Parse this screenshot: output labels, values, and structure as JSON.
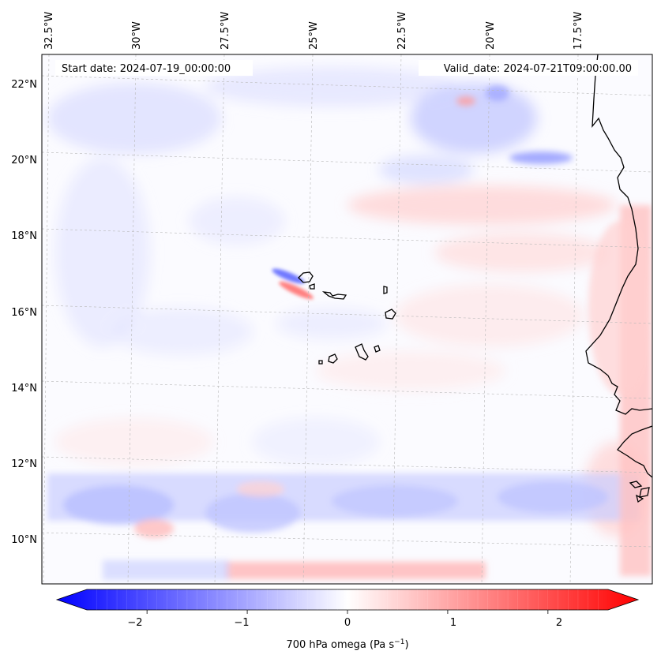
{
  "header": {
    "start_date": "Start date: 2024-07-19_00:00:00",
    "valid_date": "Valid_date: 2024-07-21T09:00:00.00"
  },
  "map": {
    "lon_labels": [
      "32.5°W",
      "30°W",
      "27.5°W",
      "25°W",
      "22.5°W",
      "20°W",
      "17.5°W"
    ],
    "lat_labels": [
      "22°N",
      "20°N",
      "18°N",
      "16°N",
      "14°N",
      "12°N",
      "10°N"
    ],
    "colors": {
      "negative": "#0000ff",
      "neutral": "#ffffff",
      "positive": "#ff0000",
      "coast": "#000000",
      "grid": "#b0b0b0"
    }
  },
  "colorbar": {
    "tick_labels": [
      "−2",
      "−1",
      "0",
      "1",
      "2"
    ],
    "range": [
      -2.6,
      2.6
    ],
    "label": "700 hPa omega (Pa s",
    "label_sup": "−1",
    "label_end": ")"
  }
}
